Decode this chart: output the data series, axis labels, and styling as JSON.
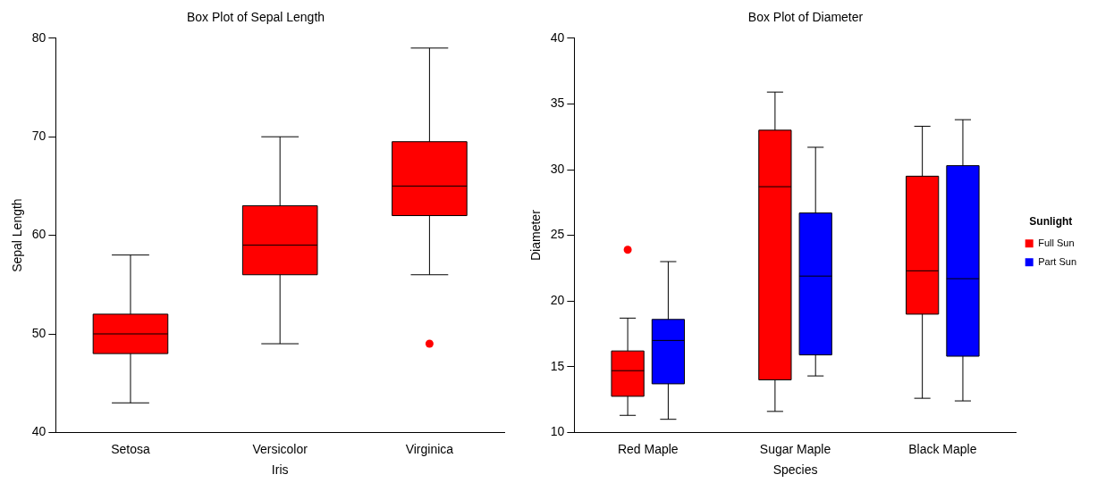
{
  "chart_data": [
    {
      "type": "box",
      "title": "Box Plot of Sepal Length",
      "xlabel": "Iris",
      "ylabel": "Sepal Length",
      "categories": [
        "Setosa",
        "Versicolor",
        "Virginica"
      ],
      "ylim": [
        40,
        80
      ],
      "yticks": [
        40,
        50,
        60,
        70,
        80
      ],
      "grid": false,
      "legend": false,
      "series": [
        {
          "color": "#ff0000",
          "boxes": [
            {
              "low": 43,
              "q1": 48,
              "median": 50,
              "q3": 52,
              "high": 58
            },
            {
              "low": 49,
              "q1": 56,
              "median": 59,
              "q3": 63,
              "high": 70
            },
            {
              "low": 56,
              "q1": 62,
              "median": 65,
              "q3": 69.5,
              "high": 79,
              "outliers": [
                49
              ]
            }
          ]
        }
      ]
    },
    {
      "type": "box",
      "title": "Box Plot of Diameter",
      "xlabel": "Species",
      "ylabel": "Diameter",
      "legend_title": "Sunlight",
      "categories": [
        "Red Maple",
        "Sugar Maple",
        "Black Maple"
      ],
      "ylim": [
        10,
        40
      ],
      "yticks": [
        10,
        15,
        20,
        25,
        30,
        35,
        40
      ],
      "grid": false,
      "legend": "right",
      "series": [
        {
          "name": "Full Sun",
          "color": "#ff0000",
          "boxes": [
            {
              "low": 11.3,
              "q1": 12.75,
              "median": 14.7,
              "q3": 16.2,
              "high": 18.7,
              "outliers": [
                23.9
              ]
            },
            {
              "low": 11.6,
              "q1": 14,
              "median": 28.7,
              "q3": 33,
              "high": 35.9
            },
            {
              "low": 12.6,
              "q1": 19,
              "median": 22.3,
              "q3": 29.5,
              "high": 33.3
            }
          ]
        },
        {
          "name": "Part Sun",
          "color": "#0000ff",
          "boxes": [
            {
              "low": 11,
              "q1": 13.7,
              "median": 17,
              "q3": 18.6,
              "high": 23
            },
            {
              "low": 14.3,
              "q1": 15.9,
              "median": 21.9,
              "q3": 26.7,
              "high": 31.7
            },
            {
              "low": 12.4,
              "q1": 15.8,
              "median": 21.7,
              "q3": 30.3,
              "high": 33.8
            }
          ]
        }
      ]
    }
  ]
}
